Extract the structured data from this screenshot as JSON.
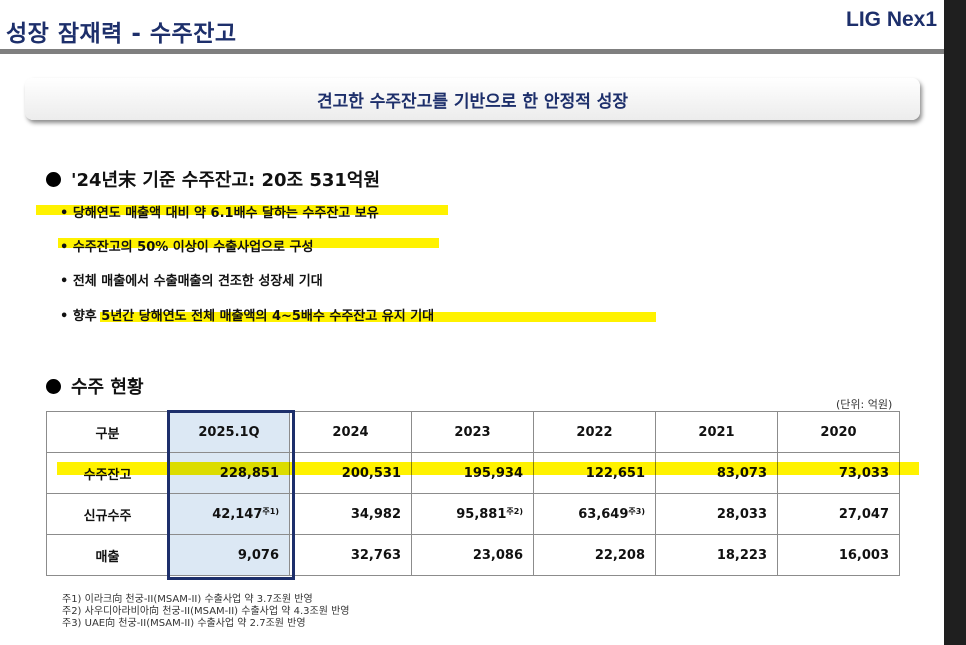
{
  "header": {
    "title": "성장 잠재력 - 수주잔고",
    "logo": "LIG Nex1"
  },
  "banner": "견고한 수주잔고를 기반으로 한 안정적 성장",
  "section1": {
    "heading": "'24년末 기준 수주잔고: 20조 531억원",
    "bullets": [
      "• 당해연도 매출액 대비 약 6.1배수 달하는 수주잔고 보유",
      "• 수주잔고의 50% 이상이 수출사업으로 구성",
      "• 전체 매출에서 수출매출의 견조한 성장세 기대",
      "• 향후 5년간 당해연도 전체 매출액의 4~5배수 수주잔고 유지 기대"
    ]
  },
  "section2": {
    "heading": "수주 현황",
    "unit": "(단위: 억원)"
  },
  "table": {
    "headers": [
      "구분",
      "2025.1Q",
      "2024",
      "2023",
      "2022",
      "2021",
      "2020"
    ],
    "rows": [
      {
        "label": "수주잔고",
        "values": [
          "228,851",
          "200,531",
          "195,934",
          "122,651",
          "83,073",
          "73,033"
        ]
      },
      {
        "label": "신규수주",
        "values": [
          "42,147",
          "34,982",
          "95,881",
          "63,649",
          "28,033",
          "27,047"
        ],
        "notes": [
          "주1)",
          "",
          "주2)",
          "주3)",
          "",
          ""
        ]
      },
      {
        "label": "매출",
        "values": [
          "9,076",
          "32,763",
          "23,086",
          "22,208",
          "18,223",
          "16,003"
        ]
      }
    ]
  },
  "footnotes": [
    "주1) 이라크向 천궁-II(MSAM-II) 수출사업 약 3.7조원 반영",
    "주2) 사우디아라비아向 천궁-II(MSAM-II) 수출사업 약 4.3조원 반영",
    "주3) UAE向 천궁-II(MSAM-II) 수출사업 약 2.7조원 반영"
  ],
  "colors": {
    "navy": "#1d2f6b",
    "highlight": "#fff200",
    "column_fill": "#dce8f4"
  }
}
